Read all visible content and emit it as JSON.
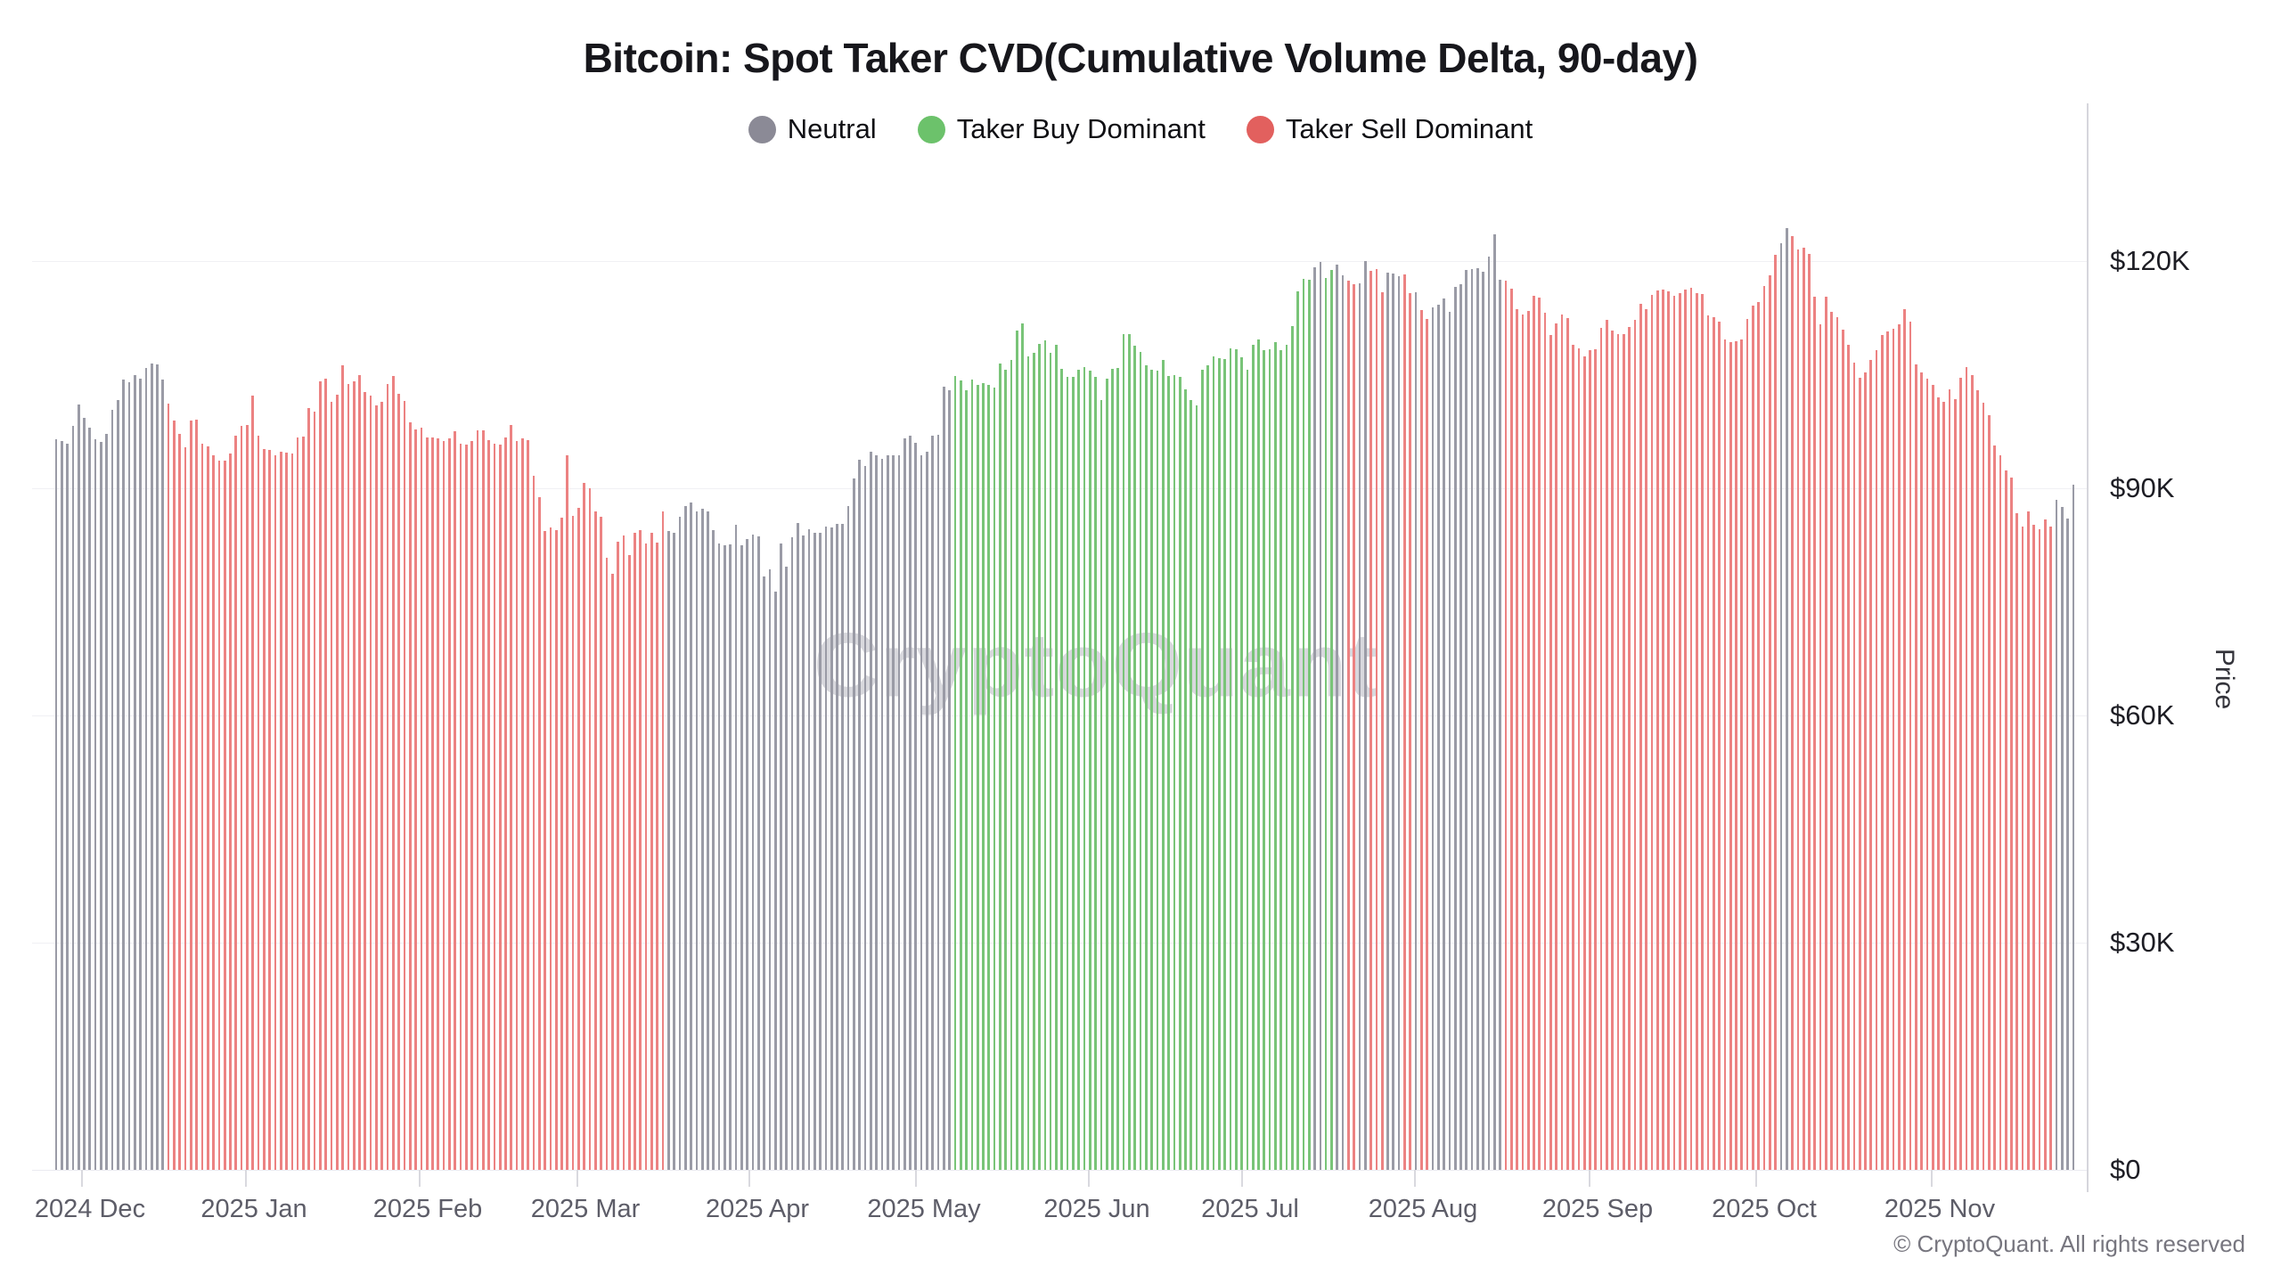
{
  "title": "Bitcoin: Spot Taker CVD(Cumulative Volume Delta, 90-day)",
  "watermark": "CryptoQuant",
  "copyright": "© CryptoQuant. All rights reserved",
  "legend": [
    {
      "key": "n",
      "label": "Neutral",
      "color": "#8b8a96"
    },
    {
      "key": "b",
      "label": "Taker Buy Dominant",
      "color": "#6cc26b"
    },
    {
      "key": "s",
      "label": "Taker Sell Dominant",
      "color": "#e2605e"
    }
  ],
  "y_axis": {
    "title": "Price",
    "tick_labels": [
      "$0",
      "$30K",
      "$60K",
      "$90K",
      "$120K"
    ],
    "tick_values_k": [
      0,
      30,
      60,
      90,
      120
    ]
  },
  "x_axis": {
    "labels": [
      "2024 Dec",
      "2025 Jan",
      "2025 Feb",
      "2025 Mar",
      "2025 Apr",
      "2025 May",
      "2025 Jun",
      "2025 Jul",
      "2025 Aug",
      "2025 Sep",
      "2025 Oct",
      "2025 Nov"
    ]
  },
  "chart_data": {
    "type": "bar",
    "title": "Bitcoin: Spot Taker CVD(Cumulative Volume Delta, 90-day)",
    "ylabel": "Price",
    "x_unit": "day",
    "x_range": "Dec 2024 – Nov 2025",
    "ylim_k": [
      0,
      140
    ],
    "grid": "horizontal, faint",
    "legend_position": "top center",
    "color_legend": {
      "n": "Neutral",
      "b": "Taker Buy Dominant",
      "s": "Taker Sell Dominant"
    },
    "bar_colors": {
      "n": "#9a9ba6",
      "b": "#79c478",
      "s": "#ec8282"
    },
    "color_runs": "n20,s89,n51,b64,n2,b2,n2,s2,n2,s3,n3,s2,n1,s2,n13,s49,n2,s47,n4",
    "values_k": [
      96.5,
      96.2,
      95.9,
      98.2,
      101.1,
      99.3,
      98.0,
      96.5,
      96.1,
      97.2,
      100.3,
      101.6,
      104.3,
      104.0,
      104.9,
      104.5,
      105.9,
      106.5,
      106.3,
      104.4,
      101.2,
      99.0,
      97.2,
      95.4,
      98.9,
      99.1,
      95.9,
      95.5,
      94.3,
      93.7,
      93.6,
      94.6,
      96.9,
      98.2,
      98.4,
      102.2,
      97.0,
      95.2,
      95.1,
      94.3,
      94.8,
      94.7,
      94.6,
      96.7,
      96.8,
      100.6,
      100.1,
      104.1,
      104.5,
      101.4,
      102.4,
      106.2,
      103.8,
      104.1,
      105.0,
      102.7,
      102.2,
      100.9,
      101.4,
      103.8,
      104.8,
      102.5,
      101.5,
      98.7,
      97.8,
      98.0,
      96.7,
      96.7,
      96.6,
      96.2,
      96.6,
      97.5,
      95.9,
      95.8,
      96.2,
      97.6,
      97.6,
      96.3,
      95.9,
      95.8,
      96.7,
      98.4,
      96.2,
      96.6,
      96.4,
      91.6,
      88.8,
      84.4,
      84.8,
      84.5,
      86.1,
      94.3,
      86.3,
      87.4,
      90.7,
      90.0,
      86.9,
      86.2,
      80.8,
      78.7,
      83.0,
      83.8,
      81.2,
      84.1,
      84.5,
      82.7,
      84.1,
      82.8,
      86.9,
      84.3,
      84.1,
      86.2,
      87.6,
      88.1,
      87.0,
      87.3,
      87.0,
      84.5,
      82.7,
      82.5,
      82.6,
      85.2,
      82.5,
      83.3,
      83.9,
      83.6,
      78.3,
      79.3,
      76.4,
      82.7,
      79.7,
      83.5,
      85.4,
      83.8,
      84.6,
      84.1,
      84.1,
      85.0,
      84.8,
      85.3,
      85.3,
      87.6,
      91.3,
      93.8,
      93.0,
      94.8,
      94.4,
      93.9,
      94.3,
      94.4,
      94.3,
      96.6,
      97.0,
      96.0,
      94.3,
      94.8,
      96.9,
      97.1,
      103.4,
      103.0,
      104.8,
      104.2,
      102.9,
      104.3,
      103.6,
      103.9,
      103.6,
      103.3,
      106.5,
      105.7,
      106.9,
      110.8,
      111.8,
      107.4,
      107.9,
      109.1,
      109.5,
      107.9,
      109.0,
      105.8,
      104.7,
      104.7,
      105.7,
      106.0,
      105.5,
      104.7,
      101.7,
      104.5,
      105.8,
      105.9,
      110.4,
      110.3,
      108.8,
      108.0,
      106.2,
      105.6,
      105.5,
      106.9,
      104.8,
      105.0,
      104.7,
      103.1,
      101.6,
      101.0,
      105.7,
      106.2,
      107.4,
      107.2,
      107.1,
      108.5,
      108.4,
      107.3,
      105.7,
      109.0,
      109.7,
      108.2,
      108.3,
      109.3,
      108.2,
      109.0,
      111.4,
      116.0,
      117.6,
      117.5,
      119.2,
      119.9,
      117.8,
      118.8,
      119.5,
      118.1,
      117.4,
      117.0,
      117.1,
      120.0,
      118.7,
      118.9,
      115.9,
      118.5,
      118.3,
      118.0,
      118.2,
      115.8,
      115.9,
      113.5,
      112.3,
      113.9,
      114.2,
      115.1,
      113.3,
      116.6,
      117.0,
      118.8,
      119.0,
      119.1,
      118.6,
      120.6,
      123.5,
      117.5,
      117.4,
      116.4,
      113.6,
      112.9,
      113.4,
      115.4,
      115.2,
      113.2,
      110.2,
      111.8,
      113.0,
      112.5,
      108.9,
      108.5,
      107.4,
      108.2,
      108.4,
      111.2,
      112.2,
      110.8,
      110.4,
      110.4,
      111.3,
      112.2,
      114.4,
      113.6,
      115.5,
      116.1,
      116.2,
      116.0,
      115.4,
      115.8,
      116.2,
      116.5,
      115.8,
      115.7,
      112.8,
      112.6,
      112.0,
      109.7,
      109.3,
      109.4,
      109.7,
      112.3,
      114.1,
      114.6,
      116.7,
      118.1,
      120.8,
      122.3,
      124.4,
      123.3,
      121.5,
      121.8,
      121.0,
      115.3,
      111.7,
      115.3,
      113.3,
      112.6,
      110.9,
      108.9,
      106.6,
      104.6,
      105.3,
      107.0,
      108.2,
      110.2,
      110.7,
      111.1,
      111.6,
      113.6,
      112.0,
      106.4,
      105.3,
      104.5,
      103.7,
      102.0,
      101.4,
      103.1,
      101.8,
      104.6,
      106.0,
      105.0,
      103.0,
      101.3,
      99.6,
      95.6,
      94.4,
      92.3,
      91.4,
      86.7,
      85.0,
      87.0,
      85.2,
      84.6,
      85.9,
      85.0,
      88.5,
      87.5,
      86.0,
      90.5
    ]
  }
}
